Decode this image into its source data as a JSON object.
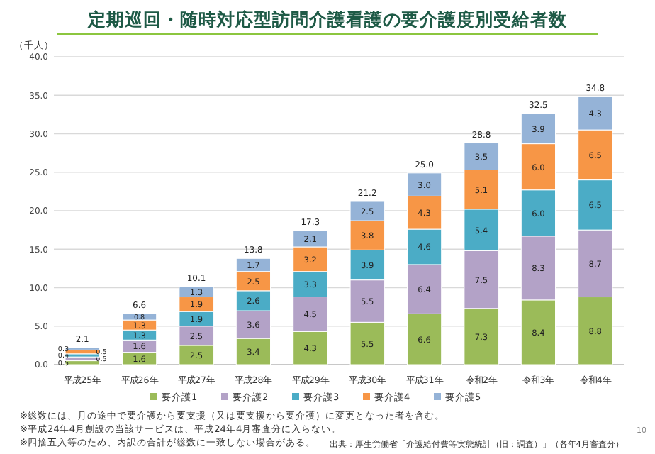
{
  "chart_data": {
    "type": "bar",
    "stacked": true,
    "title": "定期巡回・随時対応型訪問介護看護の要介護度別受給者数",
    "ylabel": "（千人）",
    "categories": [
      "平成25年",
      "平成26年",
      "平成27年",
      "平成28年",
      "平成29年",
      "平成30年",
      "平成31年",
      "令和2年",
      "令和3年",
      "令和4年"
    ],
    "series": [
      {
        "name": "要介護1",
        "color": "#9bbb59",
        "values": [
          0.5,
          1.6,
          2.5,
          3.4,
          4.3,
          5.5,
          6.6,
          7.3,
          8.4,
          8.8
        ],
        "value_labels": [
          "0.5",
          "1.6",
          "2.5",
          "3.4",
          "4.3",
          "5.5",
          "6.6",
          "7.3",
          "8.4",
          "8.8"
        ]
      },
      {
        "name": "要介護2",
        "color": "#b3a2c7",
        "values": [
          0.5,
          1.6,
          2.5,
          3.6,
          4.5,
          5.5,
          6.4,
          7.5,
          8.3,
          8.7
        ],
        "value_labels": [
          "0.5",
          "1.6",
          "2.5",
          "3.6",
          "4.5",
          "5.5",
          "6.4",
          "7.5",
          "8.3",
          "8.7"
        ]
      },
      {
        "name": "要介護3",
        "color": "#4bacc6",
        "values": [
          0.4,
          1.3,
          1.9,
          2.6,
          3.3,
          3.9,
          4.6,
          5.4,
          6.0,
          6.5
        ],
        "value_labels": [
          "0.4",
          "1.3",
          "1.9",
          "2.6",
          "3.3",
          "3.9",
          "4.6",
          "5.4",
          "6.0",
          "6.5"
        ]
      },
      {
        "name": "要介護4",
        "color": "#f79646",
        "values": [
          0.5,
          1.3,
          1.9,
          2.5,
          3.2,
          3.8,
          4.3,
          5.1,
          6.0,
          6.5
        ],
        "value_labels": [
          "0.5",
          "1.3",
          "1.9",
          "2.5",
          "3.2",
          "3.8",
          "4.3",
          "5.1",
          "6.0",
          "6.5"
        ]
      },
      {
        "name": "要介護5",
        "color": "#95b3d7",
        "values": [
          0.3,
          0.8,
          1.3,
          1.7,
          2.1,
          2.5,
          3.0,
          3.5,
          3.9,
          4.3
        ],
        "value_labels": [
          "0.3",
          "0.8",
          "1.3",
          "1.7",
          "2.1",
          "2.5",
          "3.0",
          "3.5",
          "3.9",
          "4.3"
        ]
      }
    ],
    "totals": [
      "2.1",
      "6.6",
      "10.1",
      "13.8",
      "17.3",
      "21.2",
      "25.0",
      "28.8",
      "32.5",
      "34.8"
    ],
    "ylim": [
      0,
      40
    ],
    "yticks": [
      {
        "value": 0,
        "label": "0.0"
      },
      {
        "value": 5,
        "label": "5.0"
      },
      {
        "value": 10,
        "label": "10.0"
      },
      {
        "value": 15,
        "label": "15.0"
      },
      {
        "value": 20,
        "label": "20.0"
      },
      {
        "value": 25,
        "label": "25.0"
      },
      {
        "value": 30,
        "label": "30.0"
      },
      {
        "value": 35,
        "label": "35.0"
      },
      {
        "value": 40,
        "label": "40.0"
      }
    ],
    "grid": "y",
    "legend": "bottom",
    "annotations": [
      "※総数には、月の途中で要介護から要支援（又は要支援から要介護）に変更となった者を含む。",
      "※平成24年4月創設の当該サービスは、平成24年4月審査分に入らない。",
      "※四捨五入等のため、内訳の合計が総数に一致しない場合がある。",
      "出典：厚生労働省「介護給付費等実態統計（旧：調査）」（各年4月審査分）",
      "10"
    ]
  }
}
